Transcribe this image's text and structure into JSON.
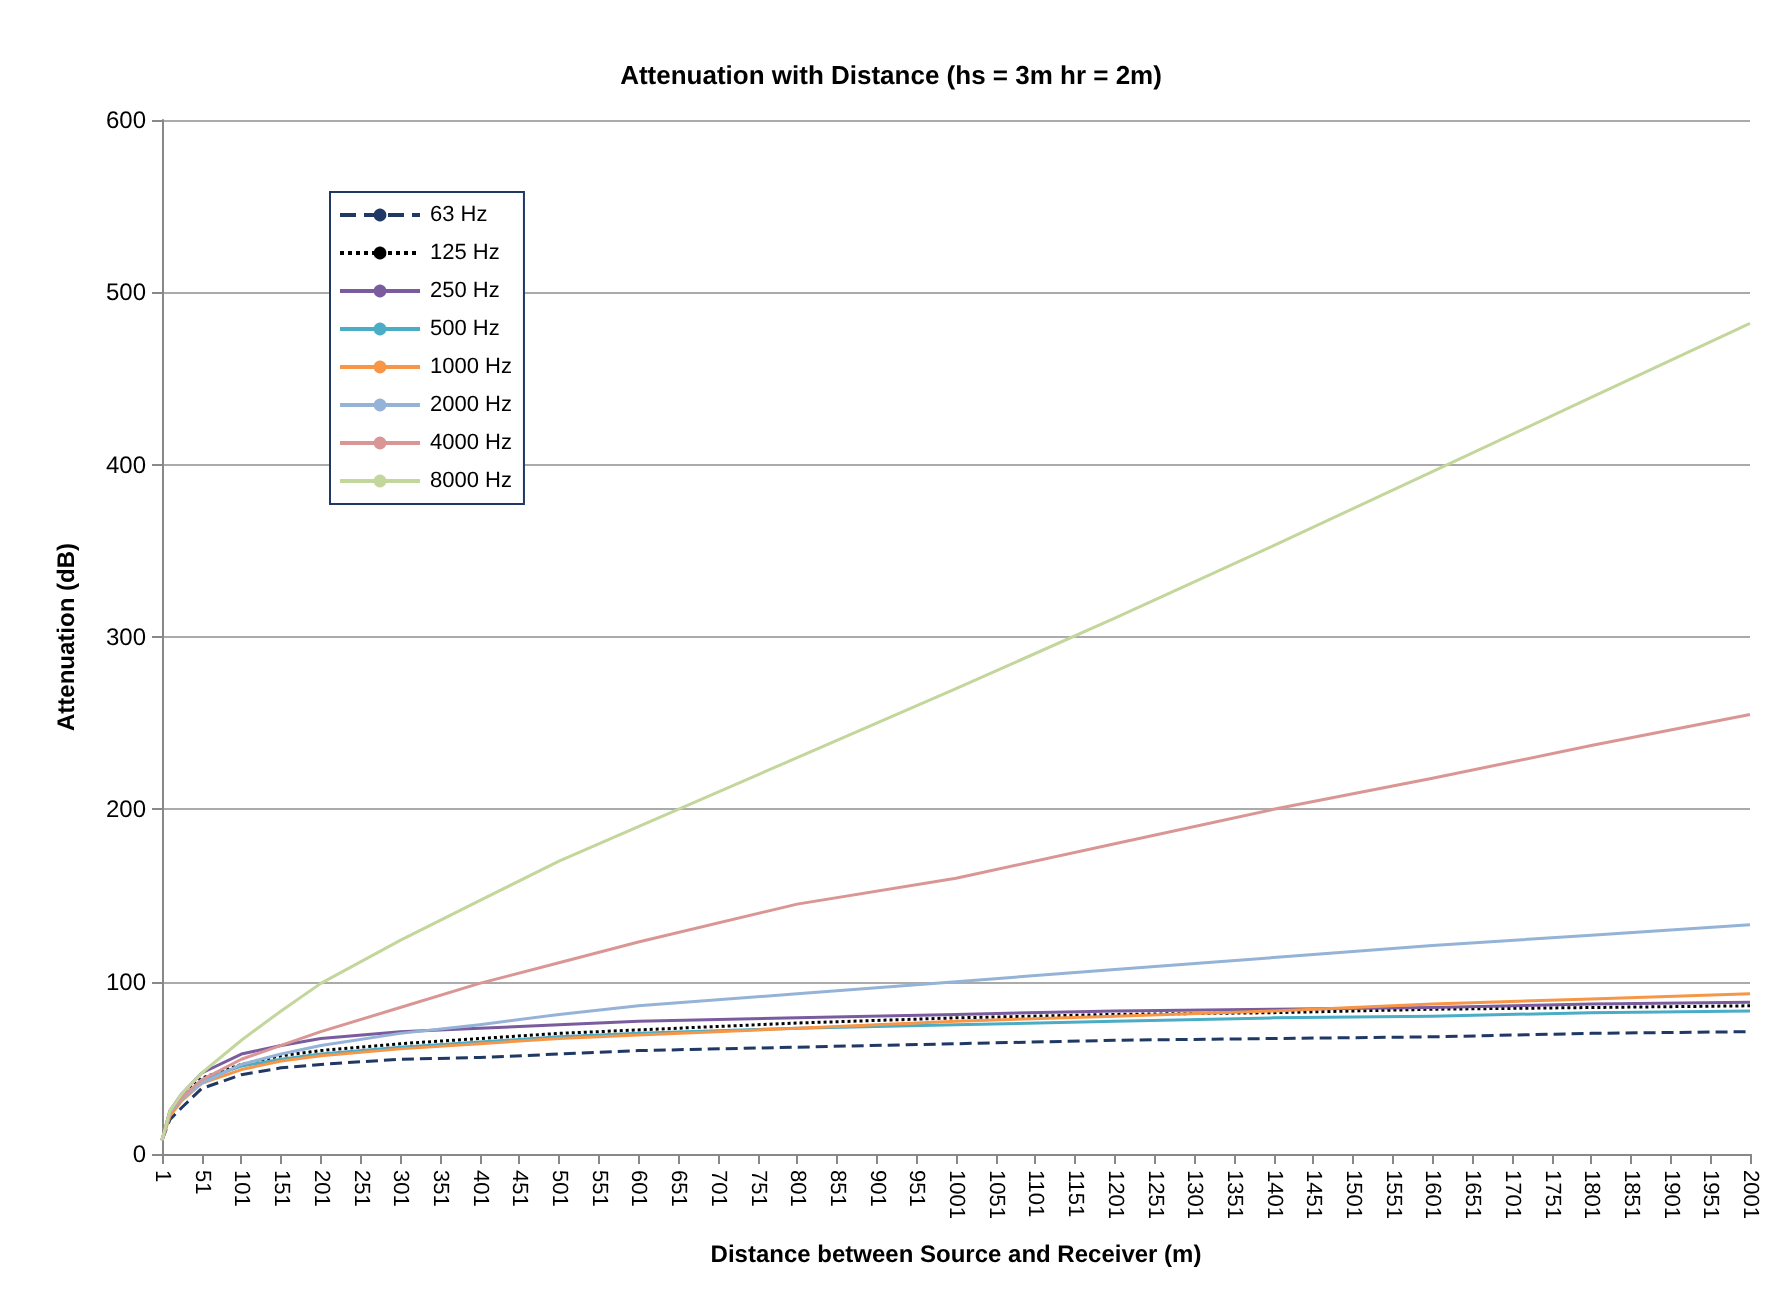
{
  "chart_data": {
    "type": "line",
    "title": "Attenuation with Distance (hs = 3m hr = 2m)",
    "xlabel": "Distance between Source and Receiver (m)",
    "ylabel": "Attenuation (dB)",
    "x": [
      1,
      11,
      26,
      51,
      101,
      151,
      201,
      301,
      401,
      501,
      601,
      801,
      1001,
      1201,
      1401,
      1601,
      1801,
      2001
    ],
    "series": [
      {
        "name": "63 Hz",
        "color": "#1f3864",
        "line_style": "dashed",
        "values": [
          8,
          20,
          27,
          38,
          46,
          50,
          52,
          55,
          56,
          58,
          60,
          62,
          64,
          66,
          67,
          68,
          70,
          71
        ]
      },
      {
        "name": "125 Hz",
        "color": "#000000",
        "line_style": "dotted",
        "values": [
          8,
          24,
          33,
          44,
          52,
          57,
          60,
          64,
          67,
          70,
          72,
          76,
          79,
          81,
          82,
          84,
          85,
          86
        ]
      },
      {
        "name": "250 Hz",
        "color": "#7a5c9e",
        "line_style": "solid",
        "values": [
          8,
          25,
          35,
          47,
          58,
          63,
          67,
          71,
          73,
          75,
          77,
          79,
          81,
          83,
          84,
          85,
          87,
          88
        ]
      },
      {
        "name": "500 Hz",
        "color": "#4bacc6",
        "line_style": "solid",
        "values": [
          8,
          23,
          32,
          43,
          51,
          55,
          58,
          62,
          65,
          68,
          70,
          73,
          75,
          77,
          79,
          80,
          82,
          83
        ]
      },
      {
        "name": "1000 Hz",
        "color": "#f79646",
        "line_style": "solid",
        "values": [
          8,
          22,
          31,
          41,
          49,
          54,
          57,
          61,
          64,
          67,
          69,
          73,
          77,
          80,
          83,
          87,
          90,
          93
        ]
      },
      {
        "name": "2000 Hz",
        "color": "#95b3d7",
        "line_style": "solid",
        "values": [
          8,
          24,
          32,
          41,
          52,
          58,
          63,
          70,
          75,
          81,
          86,
          93,
          100,
          107,
          114,
          121,
          127,
          133
        ]
      },
      {
        "name": "4000 Hz",
        "color": "#d99694",
        "line_style": "solid",
        "values": [
          8,
          25,
          33,
          43,
          55,
          63,
          71,
          85,
          99,
          111,
          123,
          145,
          160,
          180,
          200,
          218,
          237,
          255
        ]
      },
      {
        "name": "8000 Hz",
        "color": "#c3d69b",
        "line_style": "solid",
        "values": [
          8,
          25,
          35,
          47,
          66,
          83,
          99,
          124,
          147,
          170,
          190,
          230,
          270,
          311,
          353,
          396,
          439,
          482
        ]
      }
    ],
    "xlim": [
      1,
      2001
    ],
    "xticks": [
      1,
      51,
      101,
      151,
      201,
      251,
      301,
      351,
      401,
      451,
      501,
      551,
      601,
      651,
      701,
      751,
      801,
      851,
      901,
      951,
      1001,
      1051,
      1101,
      1151,
      1201,
      1251,
      1301,
      1351,
      1401,
      1451,
      1501,
      1551,
      1601,
      1651,
      1701,
      1751,
      1801,
      1851,
      1901,
      1951,
      2001
    ],
    "ylim": [
      0,
      600
    ],
    "yticks": [
      0,
      100,
      200,
      300,
      400,
      500,
      600
    ],
    "grid": "y",
    "legend": "top left",
    "marker": "none"
  }
}
